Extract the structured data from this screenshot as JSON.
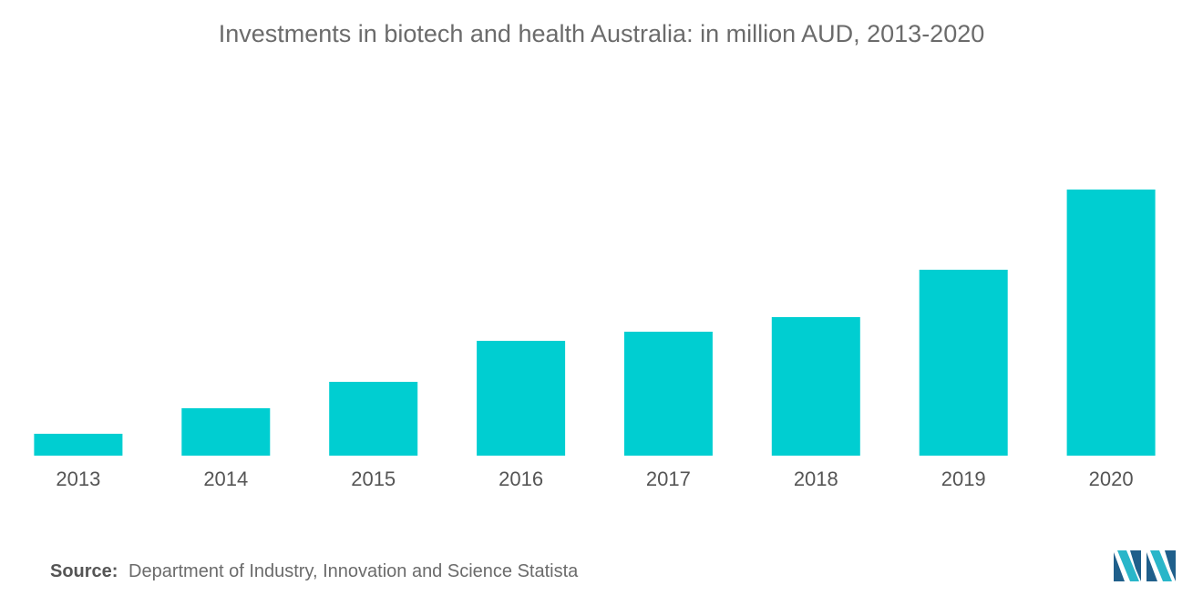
{
  "title": "Investments in biotech and health Australia: in million AUD, 2013-2020",
  "source": {
    "label": "Source:",
    "text": "Department of Industry, Innovation and Science Statista"
  },
  "colors": {
    "bar": "#00CED1",
    "text": "#6b6b6b",
    "logo_dark": "#1f5f8b",
    "logo_light": "#29b6c9"
  },
  "logo_icon": "mordor-intelligence-logo-icon",
  "chart_data": {
    "type": "bar",
    "title": "Investments in biotech and health Australia: in million AUD, 2013-2020",
    "xlabel": "",
    "ylabel": "",
    "grid": false,
    "legend": "none",
    "categories": [
      "2013",
      "2014",
      "2015",
      "2016",
      "2017",
      "2018",
      "2019",
      "2020"
    ],
    "values": [
      24,
      52,
      81,
      126,
      136,
      152,
      204,
      292
    ],
    "ylim": [
      0,
      300
    ]
  }
}
